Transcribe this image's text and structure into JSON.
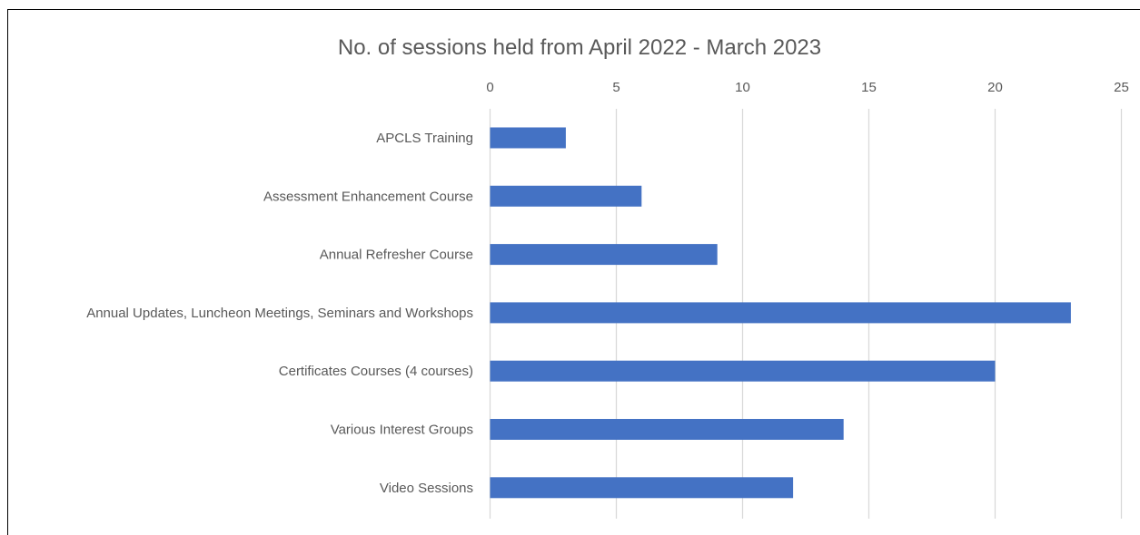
{
  "chart_data": {
    "type": "bar",
    "orientation": "horizontal",
    "title": "No. of sessions held from April 2022 - March 2023",
    "xlabel": "",
    "ylabel": "",
    "xlim": [
      0,
      25
    ],
    "x_ticks": [
      "0",
      "5",
      "10",
      "15",
      "20",
      "25"
    ],
    "x_axis_position": "top",
    "grid": true,
    "legend": "none",
    "bar_color": "#4472C4",
    "categories": [
      "APCLS Training",
      "Assessment Enhancement Course",
      "Annual Refresher Course",
      "Annual Updates, Luncheon Meetings, Seminars and Workshops",
      "Certificates Courses (4 courses)",
      "Various Interest Groups",
      "Video Sessions"
    ],
    "values": [
      3,
      6,
      9,
      23,
      20,
      14,
      12
    ]
  }
}
